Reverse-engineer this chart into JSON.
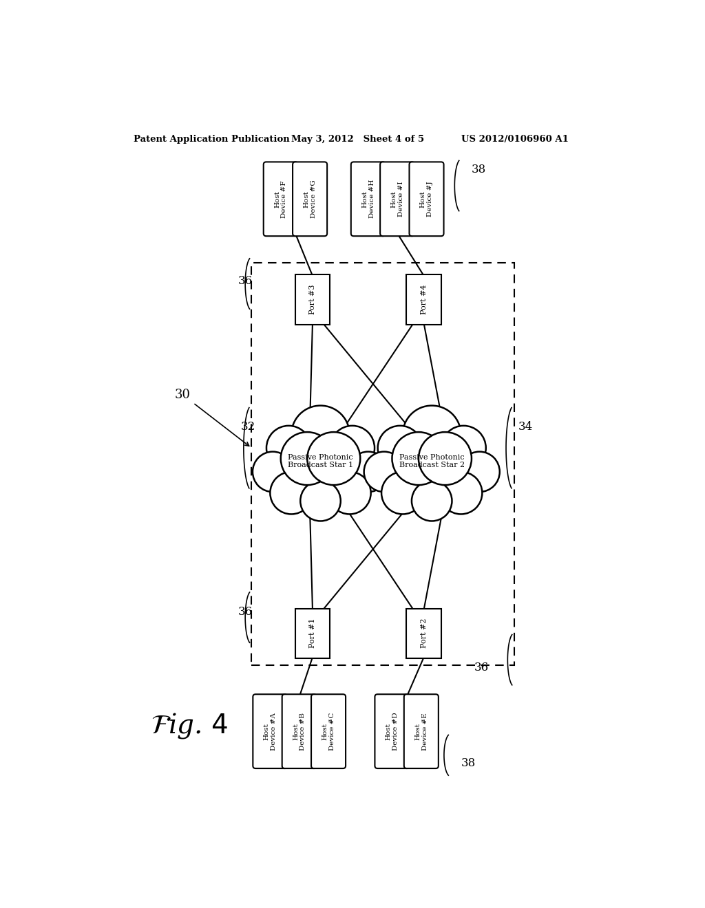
{
  "bg_color": "#ffffff",
  "header_left": "Patent Application Publication",
  "header_mid": "May 3, 2012   Sheet 4 of 5",
  "header_right": "US 2012/0106960 A1",
  "star1_label": "Passive Photonic\nBroadcast Star 1",
  "star2_label": "Passive Photonic\nBroadcast Star 2",
  "port1_label": "Port #1",
  "port2_label": "Port #2",
  "port3_label": "Port #3",
  "port4_label": "Port #4",
  "host_devices_top": [
    "Host\nDevice #F",
    "Host\nDevice #G",
    "Host\nDevice #H",
    "Host\nDevice #I",
    "Host\nDevice #J"
  ],
  "host_devices_bottom": [
    "Host\nDevice #A",
    "Host\nDevice #B",
    "Host\nDevice #C",
    "Host\nDevice #D",
    "Host\nDevice #E"
  ]
}
